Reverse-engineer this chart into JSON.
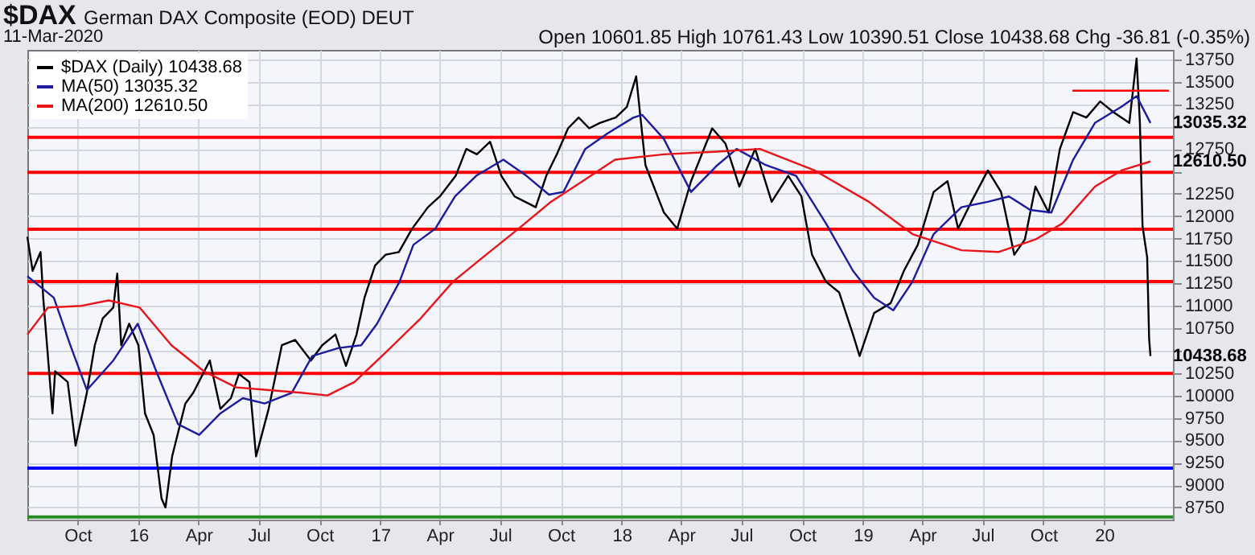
{
  "chart_data": {
    "type": "line",
    "title": "$DAX",
    "subtitle": "German DAX Composite (EOD) DEUT",
    "annotations": [
      "11-Mar-2020",
      "Open 10601.85  High 10761.43  Low 10390.51  Close 10438.68  Chg -36.81 (-0.35%)",
      {
        "text": "13035.32",
        "x": "2020-03-11",
        "y": 13035.32
      },
      {
        "text": "12610.50",
        "x": "2020-03-11",
        "y": 12610.5
      },
      {
        "text": "10438.68",
        "x": "2020-03-11",
        "y": 10438.68
      }
    ],
    "xlim": [
      "2015-07-17",
      "2020-04-14"
    ],
    "ylim": [
      8615,
      13855
    ],
    "xticks": [
      {
        "value": "2015-10",
        "label": "Oct"
      },
      {
        "value": "2016-01",
        "label": "16"
      },
      {
        "value": "2016-04",
        "label": "Apr"
      },
      {
        "value": "2016-07",
        "label": "Jul"
      },
      {
        "value": "2016-10",
        "label": "Oct"
      },
      {
        "value": "2017-01",
        "label": "17"
      },
      {
        "value": "2017-04",
        "label": "Apr"
      },
      {
        "value": "2017-07",
        "label": "Jul"
      },
      {
        "value": "2017-10",
        "label": "Oct"
      },
      {
        "value": "2018-01",
        "label": "18"
      },
      {
        "value": "2018-04",
        "label": "Apr"
      },
      {
        "value": "2018-07",
        "label": "Jul"
      },
      {
        "value": "2018-10",
        "label": "Oct"
      },
      {
        "value": "2019-01",
        "label": "19"
      },
      {
        "value": "2019-04",
        "label": "Apr"
      },
      {
        "value": "2019-07",
        "label": "Jul"
      },
      {
        "value": "2019-10",
        "label": "Oct"
      },
      {
        "value": "2020-01",
        "label": "20"
      }
    ],
    "yticks": [
      8750,
      9000,
      9250,
      9500,
      9750,
      10000,
      10250,
      {
        "value": 10500,
        "label": null
      },
      10750,
      11000,
      11250,
      11500,
      11750,
      12000,
      12250,
      {
        "value": 12500,
        "label": null
      },
      12750,
      {
        "value": 13000,
        "label": null
      },
      13250,
      13500,
      13750
    ],
    "grid": true,
    "legend": "top left",
    "marker": "none",
    "line_style": "solid",
    "series": [
      {
        "name": "$DAX (Daily) 10438.68",
        "color": "#000000",
        "x": [
          "2015-07-17",
          "2015-07-25",
          "2015-08-06",
          "2015-08-10",
          "2015-08-24",
          "2015-08-28",
          "2015-09-16",
          "2015-09-28",
          "2015-10-15",
          "2015-10-27",
          "2015-11-08",
          "2015-11-24",
          "2015-11-30",
          "2015-12-06",
          "2015-12-18",
          "2016-01-01",
          "2016-01-11",
          "2016-01-24",
          "2016-02-05",
          "2016-02-11",
          "2016-02-21",
          "2016-03-12",
          "2016-03-24",
          "2016-04-18",
          "2016-05-04",
          "2016-05-20",
          "2016-06-01",
          "2016-06-17",
          "2016-06-27",
          "2016-07-16",
          "2016-08-05",
          "2016-08-25",
          "2016-09-18",
          "2016-10-05",
          "2016-10-25",
          "2016-11-10",
          "2016-11-26",
          "2016-12-08",
          "2016-12-24",
          "2017-01-09",
          "2017-01-29",
          "2017-02-18",
          "2017-03-14",
          "2017-04-01",
          "2017-04-25",
          "2017-05-11",
          "2017-05-27",
          "2017-06-16",
          "2017-07-03",
          "2017-07-23",
          "2017-08-08",
          "2017-08-24",
          "2017-09-09",
          "2017-09-25",
          "2017-10-12",
          "2017-10-28",
          "2017-11-13",
          "2017-11-29",
          "2017-12-23",
          "2018-01-09",
          "2018-01-23",
          "2018-02-06",
          "2018-03-06",
          "2018-03-26",
          "2018-04-16",
          "2018-05-18",
          "2018-06-07",
          "2018-06-28",
          "2018-07-22",
          "2018-08-16",
          "2018-09-10",
          "2018-09-30",
          "2018-10-16",
          "2018-11-06",
          "2018-11-26",
          "2018-12-17",
          "2018-12-27",
          "2019-01-18",
          "2019-02-12",
          "2019-03-04",
          "2019-03-25",
          "2019-04-18",
          "2019-05-09",
          "2019-05-25",
          "2019-06-14",
          "2019-07-09",
          "2019-07-29",
          "2019-08-18",
          "2019-09-03",
          "2019-09-19",
          "2019-10-09",
          "2019-10-26",
          "2019-11-15",
          "2019-12-05",
          "2019-12-26",
          "2020-01-15",
          "2020-02-08",
          "2020-02-19",
          "2020-02-24",
          "2020-02-28",
          "2020-03-06",
          "2020-03-09",
          "2020-03-11"
        ],
        "values": [
          11770,
          11390,
          11600,
          11090,
          9800,
          10270,
          10150,
          9440,
          10030,
          10560,
          10860,
          10980,
          11360,
          10560,
          10800,
          10560,
          9800,
          9560,
          8850,
          8750,
          9320,
          9910,
          10030,
          10390,
          9850,
          9970,
          10240,
          10150,
          9320,
          9850,
          10560,
          10620,
          10390,
          10560,
          10680,
          10330,
          10680,
          11090,
          11450,
          11570,
          11600,
          11860,
          12100,
          12220,
          12450,
          12750,
          12690,
          12830,
          12450,
          12220,
          12160,
          12100,
          12450,
          12690,
          12980,
          13100,
          12980,
          13040,
          13100,
          13220,
          13560,
          12570,
          12040,
          11860,
          12390,
          12980,
          12810,
          12330,
          12750,
          12160,
          12450,
          12220,
          11570,
          11270,
          11150,
          10680,
          10440,
          10920,
          11030,
          11390,
          11680,
          12270,
          12390,
          11860,
          12160,
          12510,
          12270,
          11570,
          11740,
          12330,
          12040,
          12750,
          13160,
          13100,
          13280,
          13160,
          13040,
          13760,
          13040,
          11890,
          11540,
          10630,
          10440
        ]
      },
      {
        "name": "MA(50) 13035.32",
        "color": "#1c1c9c",
        "x": [
          "2015-07-17",
          "2015-08-26",
          "2015-09-20",
          "2015-10-15",
          "2015-11-24",
          "2015-12-31",
          "2016-01-28",
          "2016-03-01",
          "2016-04-02",
          "2016-05-04",
          "2016-06-07",
          "2016-07-10",
          "2016-08-20",
          "2016-09-20",
          "2016-10-30",
          "2016-12-03",
          "2016-12-27",
          "2017-01-30",
          "2017-02-20",
          "2017-03-25",
          "2017-04-24",
          "2017-05-26",
          "2017-07-06",
          "2017-08-10",
          "2017-09-13",
          "2017-10-05",
          "2017-11-07",
          "2017-12-10",
          "2018-01-19",
          "2018-02-01",
          "2018-03-06",
          "2018-04-16",
          "2018-05-26",
          "2018-06-24",
          "2018-08-07",
          "2018-09-22",
          "2018-11-06",
          "2018-12-17",
          "2019-01-18",
          "2019-02-16",
          "2019-03-17",
          "2019-04-18",
          "2019-05-30",
          "2019-07-09",
          "2019-08-10",
          "2019-09-11",
          "2019-10-13",
          "2019-11-15",
          "2019-12-18",
          "2020-01-27",
          "2020-02-19",
          "2020-03-11"
        ],
        "values": [
          11330,
          11090,
          10560,
          10060,
          10390,
          10800,
          10270,
          9680,
          9560,
          9800,
          9970,
          9910,
          10030,
          10440,
          10530,
          10560,
          10800,
          11270,
          11680,
          11860,
          12220,
          12450,
          12630,
          12450,
          12240,
          12270,
          12750,
          12920,
          13100,
          13130,
          12860,
          12270,
          12570,
          12750,
          12570,
          12450,
          11920,
          11390,
          11090,
          10950,
          11270,
          11800,
          12100,
          12160,
          12220,
          12070,
          12040,
          12630,
          13040,
          13220,
          13340,
          13040
        ]
      },
      {
        "name": "MA(200) 12610.50",
        "color": "#e8141a",
        "x": [
          "2015-07-17",
          "2015-08-17",
          "2015-10-07",
          "2015-11-17",
          "2016-01-03",
          "2016-02-20",
          "2016-04-09",
          "2016-05-28",
          "2016-07-17",
          "2016-09-03",
          "2016-10-13",
          "2016-11-23",
          "2017-01-12",
          "2017-03-03",
          "2017-04-21",
          "2017-06-10",
          "2017-07-29",
          "2017-09-16",
          "2017-11-03",
          "2017-12-22",
          "2018-03-06",
          "2018-05-26",
          "2018-07-29",
          "2018-10-20",
          "2019-01-10",
          "2019-03-17",
          "2019-05-30",
          "2019-07-25",
          "2019-09-19",
          "2019-10-30",
          "2019-12-18",
          "2020-01-27",
          "2020-03-11"
        ],
        "values": [
          10680,
          10980,
          11000,
          11060,
          10980,
          10560,
          10270,
          10090,
          10060,
          10030,
          10000,
          10150,
          10500,
          10860,
          11270,
          11570,
          11860,
          12160,
          12390,
          12630,
          12690,
          12720,
          12750,
          12510,
          12160,
          11800,
          11620,
          11600,
          11740,
          11920,
          12330,
          12510,
          12610
        ]
      },
      {
        "color": "#ff0000",
        "x": [
          "2019-11-14",
          "2020-04-08"
        ],
        "values": [
          13400,
          13400
        ]
      }
    ],
    "ref_lines": [
      {
        "axis": "y",
        "value": 12880,
        "color": "#ff0000"
      },
      {
        "axis": "y",
        "value": 12490,
        "color": "#ff0000"
      },
      {
        "axis": "y",
        "value": 11855,
        "color": "#ff0000"
      },
      {
        "axis": "y",
        "value": 11270,
        "color": "#ff0000"
      },
      {
        "axis": "y",
        "value": 10245,
        "color": "#ff0000"
      },
      {
        "axis": "y",
        "value": 9190,
        "color": "#0000ff"
      },
      {
        "axis": "y",
        "value": 8645,
        "color": "#228b22"
      }
    ]
  }
}
